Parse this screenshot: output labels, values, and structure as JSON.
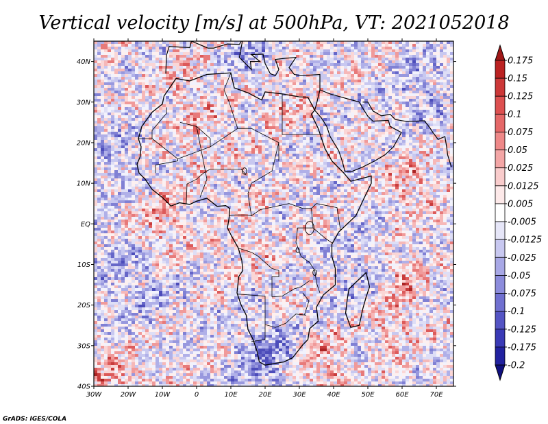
{
  "chart_data": {
    "type": "heatmap",
    "title": "Vertical velocity [m/s] at 500hPa, VT: 2021052018",
    "credit": "GrADS: IGES/COLA",
    "x_ticks": [
      "30W",
      "20W",
      "10W",
      "0",
      "10E",
      "20E",
      "30E",
      "40E",
      "50E",
      "60E",
      "70E"
    ],
    "x_tick_values": [
      -30,
      -20,
      -10,
      0,
      10,
      20,
      30,
      40,
      50,
      60,
      70
    ],
    "y_ticks": [
      "40N",
      "30N",
      "20N",
      "10N",
      "EQ",
      "10S",
      "20S",
      "30S",
      "40S"
    ],
    "y_tick_values": [
      40,
      30,
      20,
      10,
      0,
      -10,
      -20,
      -30,
      -40
    ],
    "xlim": [
      -30,
      75
    ],
    "ylim": [
      -40,
      45
    ],
    "colorbar": {
      "labels": [
        "0.175",
        "0.15",
        "0.125",
        "0.1",
        "0.075",
        "0.05",
        "0.025",
        "0.0125",
        "0.005",
        "-0.005",
        "-0.0125",
        "-0.025",
        "-0.05",
        "-0.075",
        "-0.1",
        "-0.125",
        "-0.175",
        "-0.2"
      ],
      "colors": [
        "#a01818",
        "#bb2222",
        "#cc3838",
        "#dd5050",
        "#e56868",
        "#ee8888",
        "#f3a6a6",
        "#f9cccc",
        "#fde9e9",
        "#ffffff",
        "#e6e6f8",
        "#c8c8f0",
        "#a8a8e6",
        "#8c8cdc",
        "#7070d0",
        "#5454c4",
        "#3a3ab6",
        "#2222a0",
        "#101080"
      ]
    }
  }
}
